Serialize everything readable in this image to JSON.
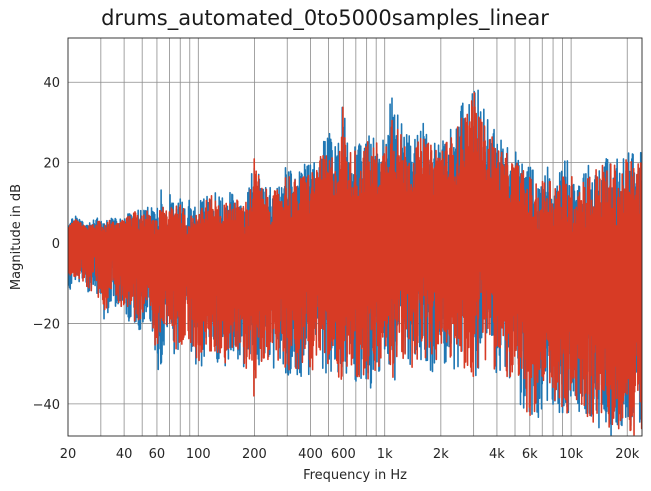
{
  "chart_data": {
    "type": "line",
    "title": "drums_automated_0to5000samples_linear",
    "xlabel": "Frequency in Hz",
    "ylabel": "Magnitude in dB",
    "xscale": "log",
    "xlim": [
      20,
      24000
    ],
    "ylim": [
      -48,
      51
    ],
    "grid": true,
    "legend": "none",
    "x_ticks": [
      20,
      40,
      60,
      100,
      200,
      400,
      600,
      1000,
      2000,
      4000,
      6000,
      10000,
      20000
    ],
    "x_tick_labels": [
      "20",
      "40",
      "60",
      "100",
      "200",
      "400",
      "600",
      "1k",
      "2k",
      "4k",
      "6k",
      "10k",
      "20k"
    ],
    "y_ticks": [
      -40,
      -20,
      0,
      20,
      40
    ],
    "y_tick_labels": [
      "−40",
      "−20",
      "0",
      "20",
      "40"
    ],
    "series": [
      {
        "color": "#1f77b4",
        "x": [
          20,
          21,
          22,
          25,
          28,
          30,
          31,
          34,
          36,
          40,
          43,
          46,
          50,
          52,
          55,
          60,
          62,
          65,
          68,
          72,
          75,
          80,
          85,
          90,
          95,
          100,
          110,
          120,
          130,
          140,
          150,
          160,
          170,
          180,
          190,
          200,
          220,
          240,
          260,
          280,
          300,
          320,
          350,
          380,
          400,
          430,
          460,
          500,
          540,
          580,
          600,
          620,
          650,
          700,
          750,
          800,
          850,
          900,
          950,
          1000,
          1100,
          1200,
          1300,
          1400,
          1500,
          1600,
          1800,
          2000,
          2200,
          2400,
          2600,
          2800,
          3000,
          3200,
          3400,
          3600,
          3800,
          4000,
          4300,
          4600,
          5000,
          5300,
          5600,
          6000,
          6300,
          6600,
          7000,
          7500,
          8000,
          8500,
          9000,
          9500,
          10000,
          11000,
          12000,
          13000,
          14000,
          15000,
          16000,
          17000,
          18000,
          19000,
          20000,
          21000,
          22000,
          23000,
          24000
        ],
        "upper": [
          5,
          6,
          7,
          5,
          6,
          7,
          5,
          7,
          6,
          7,
          8,
          9,
          8,
          10,
          9,
          8,
          16,
          10,
          9,
          14,
          10,
          11,
          9,
          12,
          10,
          11,
          12,
          13,
          12,
          11,
          13,
          12,
          12,
          12,
          15,
          24,
          15,
          14,
          14,
          16,
          22,
          17,
          18,
          21,
          20,
          22,
          24,
          30,
          25,
          26,
          41,
          27,
          25,
          26,
          24,
          28,
          26,
          30,
          25,
          28,
          38,
          32,
          28,
          26,
          28,
          30,
          26,
          28,
          28,
          30,
          35,
          38,
          41,
          38,
          34,
          32,
          30,
          28,
          26,
          24,
          24,
          22,
          21,
          20,
          18,
          16,
          18,
          20,
          19,
          19,
          19,
          22,
          19,
          19,
          20,
          20,
          22,
          22,
          22,
          22,
          22,
          22,
          23,
          23,
          23,
          23,
          23
        ],
        "lower": [
          -14,
          -12,
          -10,
          -12,
          -14,
          -16,
          -21,
          -15,
          -16,
          -18,
          -20,
          -21,
          -22,
          -18,
          -20,
          -29,
          -42,
          -26,
          -22,
          -24,
          -30,
          -28,
          -26,
          -26,
          -30,
          -32,
          -30,
          -30,
          -30,
          -32,
          -28,
          -30,
          -32,
          -34,
          -30,
          -32,
          -30,
          -30,
          -32,
          -30,
          -34,
          -32,
          -34,
          -32,
          -34,
          -30,
          -32,
          -34,
          -32,
          -36,
          -34,
          -33,
          -32,
          -36,
          -34,
          -36,
          -38,
          -36,
          -33,
          -30,
          -36,
          -34,
          -30,
          -32,
          -30,
          -30,
          -32,
          -30,
          -30,
          -32,
          -32,
          -34,
          -36,
          -32,
          -30,
          -30,
          -32,
          -33,
          -34,
          -36,
          -38,
          -41,
          -43,
          -44,
          -46,
          -44,
          -42,
          -40,
          -41,
          -42,
          -44,
          -46,
          -45,
          -42,
          -44,
          -46,
          -47,
          -48,
          -48,
          -48,
          -48,
          -48,
          -48,
          -48,
          -48,
          -48,
          -48
        ]
      },
      {
        "color": "#d73b25",
        "x": [
          20,
          21,
          22,
          25,
          28,
          30,
          31,
          34,
          36,
          40,
          43,
          46,
          50,
          52,
          55,
          60,
          62,
          65,
          68,
          72,
          75,
          80,
          85,
          90,
          95,
          100,
          110,
          120,
          130,
          140,
          150,
          160,
          170,
          180,
          190,
          200,
          220,
          240,
          260,
          280,
          300,
          320,
          350,
          380,
          400,
          430,
          460,
          500,
          540,
          580,
          600,
          620,
          650,
          700,
          750,
          800,
          850,
          900,
          950,
          1000,
          1100,
          1200,
          1300,
          1400,
          1500,
          1600,
          1800,
          2000,
          2200,
          2400,
          2600,
          2800,
          3000,
          3200,
          3400,
          3600,
          3800,
          4000,
          4300,
          4600,
          5000,
          5300,
          5600,
          6000,
          6300,
          6600,
          7000,
          7500,
          8000,
          8500,
          9000,
          9500,
          10000,
          11000,
          12000,
          13000,
          14000,
          15000,
          16000,
          17000,
          18000,
          19000,
          20000,
          21000,
          22000,
          23000,
          24000
        ],
        "upper": [
          4,
          5,
          6,
          4,
          5,
          6,
          4,
          6,
          5,
          6,
          7,
          8,
          7,
          8,
          8,
          7,
          9,
          9,
          8,
          12,
          9,
          10,
          8,
          10,
          9,
          10,
          11,
          12,
          11,
          10,
          12,
          11,
          11,
          11,
          14,
          22,
          14,
          13,
          13,
          15,
          19,
          16,
          16,
          19,
          18,
          20,
          22,
          22,
          23,
          24,
          38,
          24,
          23,
          24,
          22,
          26,
          24,
          26,
          23,
          25,
          36,
          28,
          25,
          24,
          25,
          27,
          24,
          26,
          26,
          28,
          32,
          35,
          38,
          34,
          30,
          28,
          27,
          25,
          23,
          22,
          21,
          20,
          18,
          17,
          16,
          14,
          16,
          18,
          17,
          17,
          17,
          19,
          17,
          17,
          18,
          18,
          20,
          20,
          20,
          20,
          20,
          20,
          21,
          21,
          21,
          21,
          21
        ],
        "lower": [
          -13,
          -11,
          -9,
          -11,
          -13,
          -15,
          -19,
          -14,
          -15,
          -17,
          -19,
          -20,
          -20,
          -17,
          -19,
          -28,
          -26,
          -24,
          -21,
          -22,
          -28,
          -26,
          -25,
          -25,
          -28,
          -30,
          -28,
          -29,
          -28,
          -30,
          -27,
          -28,
          -30,
          -32,
          -29,
          -40,
          -29,
          -29,
          -30,
          -29,
          -32,
          -31,
          -33,
          -31,
          -33,
          -29,
          -31,
          -33,
          -31,
          -35,
          -33,
          -32,
          -31,
          -35,
          -33,
          -35,
          -36,
          -35,
          -32,
          -29,
          -35,
          -33,
          -29,
          -31,
          -29,
          -29,
          -31,
          -29,
          -29,
          -31,
          -31,
          -33,
          -35,
          -31,
          -29,
          -29,
          -31,
          -32,
          -33,
          -35,
          -37,
          -40,
          -42,
          -43,
          -45,
          -43,
          -41,
          -39,
          -40,
          -41,
          -43,
          -45,
          -44,
          -41,
          -43,
          -45,
          -46,
          -47,
          -47,
          -48,
          -48,
          -48,
          -48,
          -48,
          -48,
          -48,
          -48
        ]
      }
    ]
  }
}
